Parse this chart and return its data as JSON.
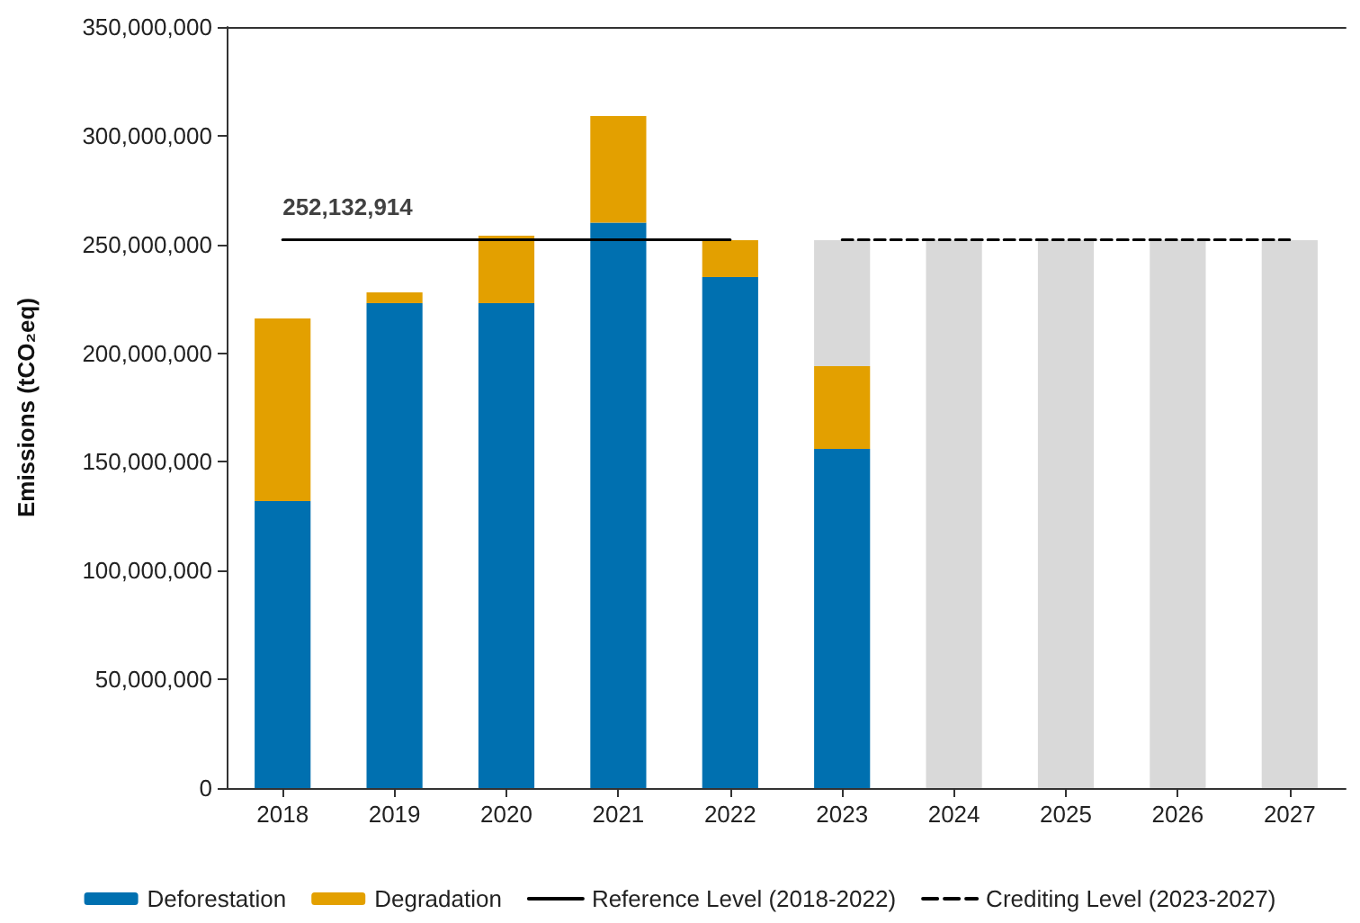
{
  "chart_data": {
    "type": "bar",
    "ylabel": "Emissions (tCO₂eq)",
    "categories": [
      "2018",
      "2019",
      "2020",
      "2021",
      "2022",
      "2023",
      "2024",
      "2025",
      "2026",
      "2027"
    ],
    "stacked": true,
    "series": [
      {
        "name": "Deforestation",
        "color": "#0070b0",
        "values": [
          132000000,
          223000000,
          223000000,
          260000000,
          235000000,
          156000000,
          null,
          null,
          null,
          null
        ]
      },
      {
        "name": "Degradation",
        "color": "#e3a000",
        "values": [
          84000000,
          5000000,
          31000000,
          49000000,
          17000000,
          38000000,
          null,
          null,
          null,
          null
        ]
      },
      {
        "color": "#d9d9d9",
        "values": [
          null,
          null,
          null,
          null,
          null,
          58000000,
          252000000,
          252000000,
          252000000,
          252000000
        ]
      },
      {
        "name": "Reference Level (2018-2022)",
        "type": "line",
        "color": "#000000",
        "line_style": "solid",
        "values": [
          252132914,
          252132914,
          252132914,
          252132914,
          252132914,
          null,
          null,
          null,
          null,
          null
        ]
      },
      {
        "name": "Crediting Level (2023-2027)",
        "type": "line",
        "color": "#000000",
        "line_style": "dashed",
        "values": [
          null,
          null,
          null,
          null,
          null,
          252132914,
          252132914,
          252132914,
          252132914,
          252132914
        ]
      }
    ],
    "annotations": [
      {
        "text": "252,132,914",
        "x": "2018",
        "y": 252132914
      }
    ],
    "ylim": [
      0,
      350000000
    ],
    "yticks": [
      0,
      {
        "value": 50000000,
        "label": "50,000,000"
      },
      {
        "value": 100000000,
        "label": "100,000,000"
      },
      {
        "value": 150000000,
        "label": "150,000,000"
      },
      {
        "value": 200000000,
        "label": "200,000,000"
      },
      {
        "value": 250000000,
        "label": "250,000,000"
      },
      {
        "value": 300000000,
        "label": "300,000,000"
      },
      {
        "value": 350000000,
        "label": "350,000,000"
      }
    ],
    "grid": false,
    "legend": "bottom",
    "marker": "none"
  }
}
